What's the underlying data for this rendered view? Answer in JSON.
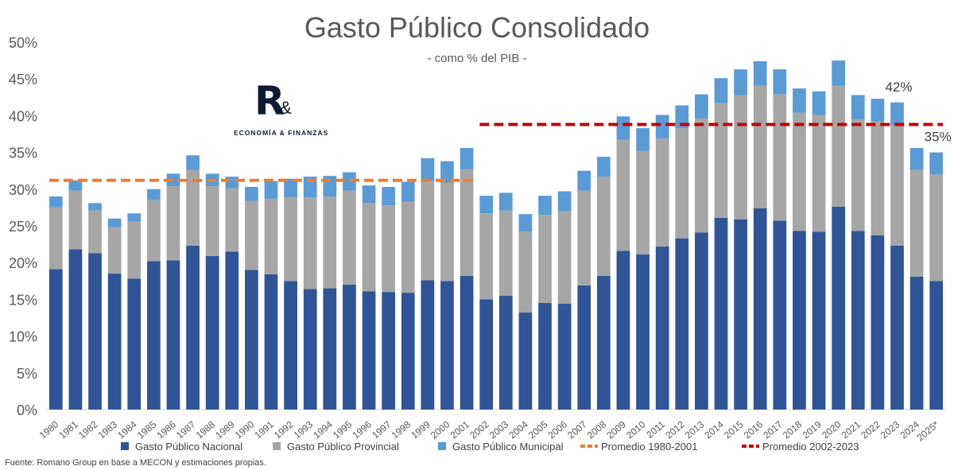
{
  "chart_data": {
    "type": "bar",
    "stacked": true,
    "title": "Gasto Público Consolidado",
    "subtitle": "- como % del PIB -",
    "xlabel": "",
    "ylabel": "",
    "ylim": [
      0,
      50
    ],
    "yticks": [
      0,
      5,
      10,
      15,
      20,
      25,
      30,
      35,
      40,
      45,
      50
    ],
    "ytick_format": "{v}%",
    "grid": false,
    "legend_position": "bottom",
    "categories": [
      "1980",
      "1981",
      "1982",
      "1983",
      "1984",
      "1985",
      "1986",
      "1987",
      "1988",
      "1989",
      "1990",
      "1991",
      "1992",
      "1993",
      "1994",
      "1995",
      "1996",
      "1997",
      "1998",
      "1999",
      "2000",
      "2001",
      "2002",
      "2003",
      "2004",
      "2005",
      "2006",
      "2007",
      "2008",
      "2009",
      "2010",
      "2011",
      "2012",
      "2013",
      "2014",
      "2015",
      "2016",
      "2017",
      "2018",
      "2019",
      "2020",
      "2021",
      "2022",
      "2023",
      "2024",
      "2025*"
    ],
    "series": [
      {
        "name": "Gasto Público Nacional",
        "color": "#2f5597",
        "values": [
          19.1,
          21.8,
          21.3,
          18.5,
          17.8,
          20.2,
          20.3,
          22.3,
          20.9,
          21.5,
          19.0,
          18.4,
          17.5,
          16.4,
          16.5,
          17.0,
          16.1,
          16.0,
          15.9,
          17.6,
          17.5,
          18.2,
          15.0,
          15.5,
          13.2,
          14.5,
          14.4,
          16.9,
          18.2,
          21.6,
          21.1,
          22.2,
          23.3,
          24.1,
          26.1,
          25.9,
          27.4,
          25.7,
          24.3,
          24.2,
          27.6,
          24.3,
          23.7,
          22.3,
          18.1,
          17.5
        ]
      },
      {
        "name": "Gasto Público Provincial",
        "color": "#a6a6a6",
        "values": [
          8.4,
          8.0,
          5.8,
          6.3,
          7.8,
          8.3,
          10.1,
          10.3,
          9.5,
          8.6,
          9.4,
          10.3,
          11.4,
          12.5,
          12.5,
          12.8,
          12.0,
          11.8,
          12.4,
          13.5,
          13.4,
          14.5,
          11.7,
          11.6,
          11.0,
          12.0,
          12.6,
          12.9,
          13.5,
          15.1,
          14.1,
          14.7,
          15.0,
          15.5,
          15.6,
          16.9,
          16.7,
          17.2,
          16.1,
          15.9,
          16.5,
          15.2,
          15.5,
          16.4,
          14.5,
          14.5
        ]
      },
      {
        "name": "Gasto Público Municipal",
        "color": "#5b9bd5",
        "values": [
          1.5,
          1.4,
          1.0,
          1.2,
          1.1,
          1.5,
          1.7,
          2.0,
          1.7,
          1.6,
          1.9,
          2.4,
          2.5,
          2.8,
          2.8,
          2.5,
          2.4,
          2.5,
          2.7,
          3.1,
          2.9,
          2.9,
          2.4,
          2.4,
          2.4,
          2.6,
          2.7,
          2.7,
          2.7,
          3.2,
          3.1,
          3.2,
          3.1,
          3.3,
          3.4,
          3.5,
          3.3,
          3.4,
          3.3,
          3.2,
          3.4,
          3.3,
          3.1,
          3.1,
          3.0,
          3.0
        ]
      }
    ],
    "reference_lines": [
      {
        "name": "Promedio 1980-2001",
        "value": 31.2,
        "from": "1980",
        "to": "2001",
        "color": "#ed7d31",
        "style": "dashed"
      },
      {
        "name": "Promedio 2002-2023",
        "value": 38.8,
        "from": "2002",
        "to": "2025*",
        "color": "#c00000",
        "style": "dashed"
      }
    ],
    "annotations": [
      {
        "text": "42%",
        "category": "2023"
      },
      {
        "text": "35%",
        "category": "2025*"
      }
    ]
  },
  "logo": {
    "mark": "R",
    "amp": "&",
    "text": "ECONOMÍA & FINANZAS"
  },
  "source": "Fuente: Romano Group en base a MECON y estimaciones propias."
}
